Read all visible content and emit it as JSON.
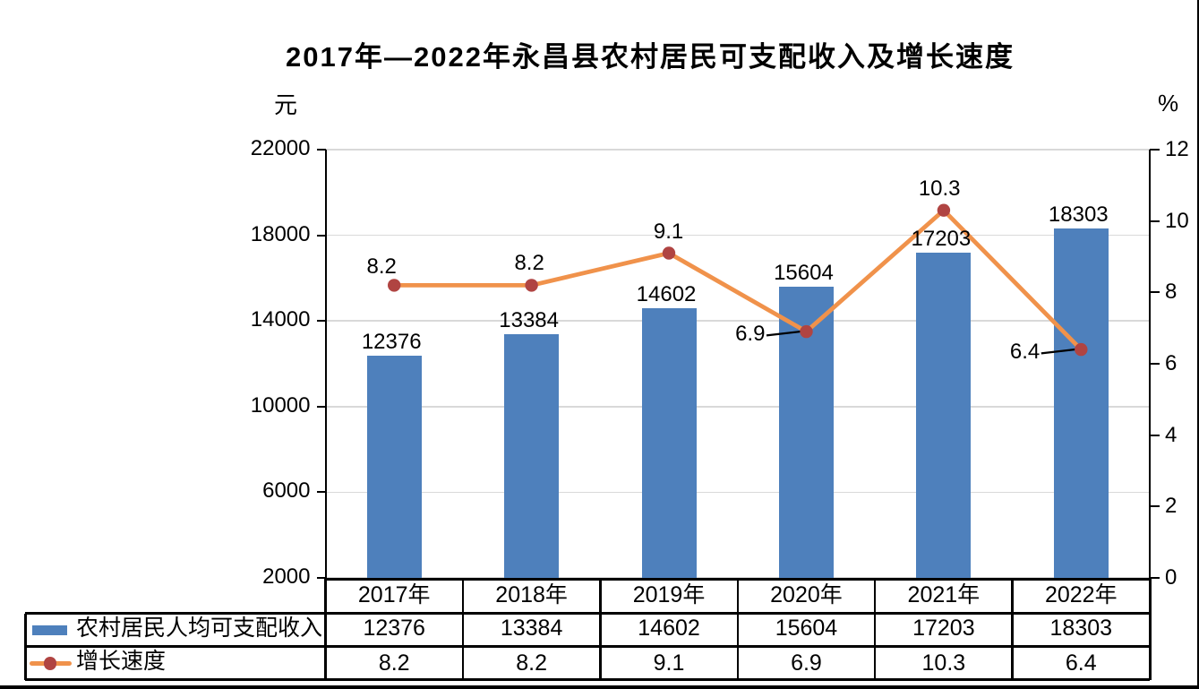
{
  "title": "2017年—2022年永昌县农村居民可支配收入及增长速度",
  "chart_data": {
    "type": "bar+line",
    "title": "2017年—2022年永昌县农村居民可支配收入及增长速度",
    "categories": [
      "2017年",
      "2018年",
      "2019年",
      "2020年",
      "2021年",
      "2022年"
    ],
    "series": [
      {
        "name": "农村居民人均可支配收入",
        "type": "bar",
        "axis": "left",
        "values": [
          12376,
          13384,
          14602,
          15604,
          17203,
          18303
        ],
        "labels": [
          "12376",
          "13384",
          "14602",
          "15604",
          "17203",
          "18303"
        ],
        "color": "#4E80BC"
      },
      {
        "name": "增长速度",
        "type": "line",
        "axis": "right",
        "values": [
          8.2,
          8.2,
          9.1,
          6.9,
          10.3,
          6.4
        ],
        "labels": [
          "8.2",
          "8.2",
          "9.1",
          "6.9",
          "10.3",
          "6.4"
        ],
        "label_positions": [
          "above",
          "above",
          "above",
          "left-leader",
          "above",
          "left-leader"
        ],
        "label_offsets": [
          [
            -14,
            3.5
          ],
          [
            -2.5,
            0
          ],
          [
            -0.5,
            0
          ],
          [
            0,
            0
          ],
          [
            -4.7,
            0
          ],
          [
            0,
            0
          ]
        ],
        "color": "#F0924B",
        "marker_color": "#B04442"
      }
    ],
    "left_axis": {
      "unit": "元",
      "min": 2000,
      "max": 22000,
      "step": 4000,
      "tick_labels": [
        "2000",
        "6000",
        "10000",
        "14000",
        "18000",
        "22000"
      ]
    },
    "right_axis": {
      "unit": "%",
      "min": 0,
      "max": 12,
      "step": 2,
      "tick_labels": [
        "0",
        "2",
        "4",
        "6",
        "8",
        "10",
        "12"
      ]
    },
    "grid": true,
    "legend_position": "table-left",
    "gridline_color": "#D9D9D9",
    "axis_color": "#000000",
    "leader_line_color": "#000000",
    "table_border_color": "#000000",
    "bottom_bar_color": "#000000"
  }
}
